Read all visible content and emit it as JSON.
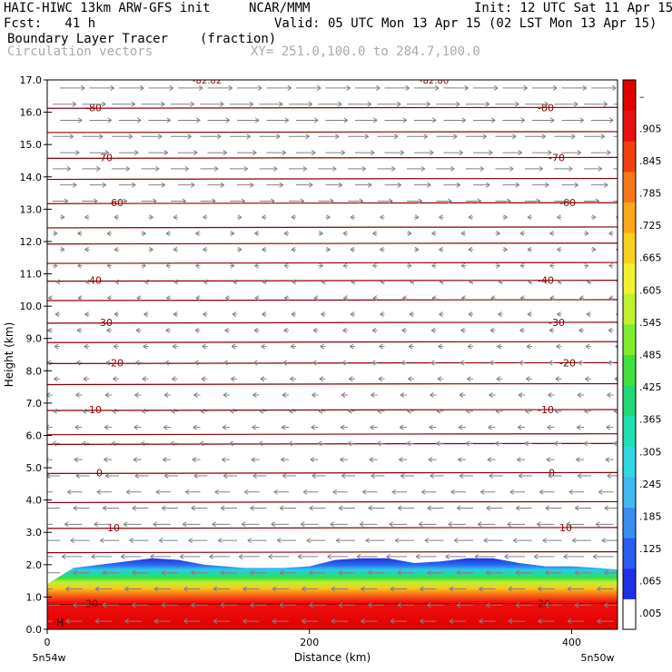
{
  "header": {
    "model": "HAIC-HIWC 13km ARW-GFS init",
    "org": "NCAR/MMM",
    "init": "Init: 12 UTC Sat 11 Apr 15",
    "fcst": "Fcst:   41 h",
    "valid": "Valid: 05 UTC Mon 13 Apr 15 (02 LST Mon 13 Apr 15)",
    "field1": "Boundary Layer Tracer",
    "field1_units": "(fraction)",
    "field2": "Circulation vectors",
    "xy": "XY= 251.0,100.0 to 284.7,100.0"
  },
  "chart_data": {
    "type": "heatmap",
    "title": "Boundary Layer Tracer",
    "xlabel": "Distance (km)",
    "ylabel": "Height (km)",
    "xlim": [
      0,
      435
    ],
    "ylim": [
      0,
      17
    ],
    "x_ticks": [
      "0",
      "200",
      "400"
    ],
    "x_edge_labels": [
      "5n54w",
      "5n50w"
    ],
    "y_ticks": [
      "0.0",
      "1.0",
      "2.0",
      "3.0",
      "4.0",
      "5.0",
      "6.0",
      "7.0",
      "8.0",
      "9.0",
      "10.0",
      "11.0",
      "12.0",
      "13.0",
      "14.0",
      "15.0",
      "16.0",
      "17.0"
    ],
    "colorbar": {
      "labels": [
        ".005",
        ".065",
        ".125",
        ".185",
        ".245",
        ".305",
        ".365",
        ".425",
        ".485",
        ".545",
        ".605",
        ".665",
        ".725",
        ".785",
        ".845",
        ".905",
        "–"
      ],
      "colors": [
        "#ffffff",
        "#2030e8",
        "#2a5cf0",
        "#3a8cf0",
        "#40b8f0",
        "#30d8e0",
        "#20e0b0",
        "#20d878",
        "#40e040",
        "#80ec30",
        "#c0f030",
        "#f0f030",
        "#f8d020",
        "#f8a818",
        "#f87818",
        "#f04010",
        "#e81010",
        "#e00000"
      ]
    },
    "boundary_layer_top_km": {
      "x_km": [
        0,
        20,
        40,
        60,
        80,
        100,
        120,
        150,
        180,
        200,
        220,
        240,
        260,
        280,
        300,
        320,
        340,
        360,
        380,
        400,
        420,
        435
      ],
      "top": [
        1.4,
        1.9,
        2.0,
        2.1,
        2.2,
        2.15,
        2.0,
        1.9,
        1.9,
        1.95,
        2.15,
        2.2,
        2.2,
        2.05,
        2.1,
        2.2,
        2.2,
        2.05,
        1.95,
        1.95,
        1.9,
        1.85
      ]
    },
    "temperature_contours": [
      {
        "label": "-80",
        "height_km": 16.15
      },
      {
        "label": "-70",
        "height_km": 14.6
      },
      {
        "label": "-60",
        "height_km": 13.2
      },
      {
        "label": "-40",
        "height_km": 10.8
      },
      {
        "label": "-30",
        "height_km": 9.5
      },
      {
        "label": "-20",
        "height_km": 8.25
      },
      {
        "label": "-10",
        "height_km": 6.8
      },
      {
        "label": "0",
        "height_km": 4.85
      },
      {
        "label": "10",
        "height_km": 3.15
      },
      {
        "label": "20",
        "height_km": 0.8
      }
    ],
    "unlabeled_contours_km": [
      15.4,
      13.95,
      12.45,
      11.95,
      11.35,
      10.2,
      8.9,
      7.6,
      6.05,
      5.75,
      3.95,
      2.4
    ],
    "top_labels": [
      "-82.82",
      "-82.80"
    ],
    "marker_label": "H",
    "vectors": "westward above ~5 km weak, eastward strong above 13 km"
  }
}
